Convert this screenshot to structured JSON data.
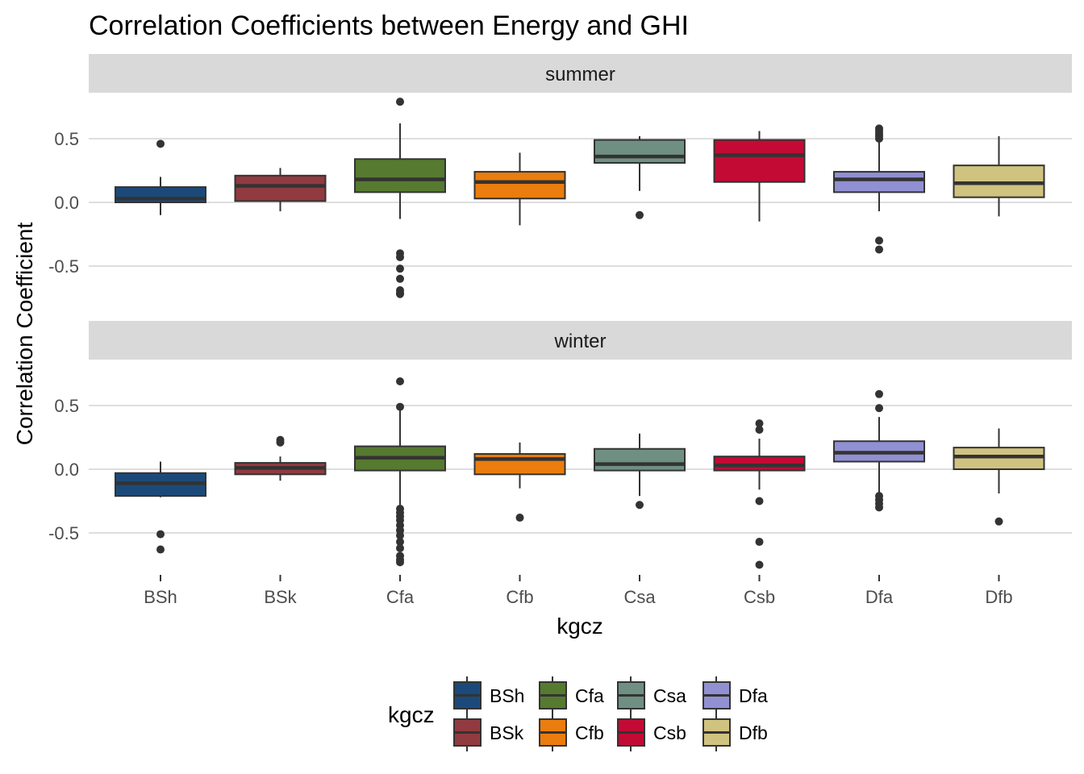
{
  "chart_data": {
    "type": "box",
    "title": "Correlation Coefficients between Energy and GHI",
    "xlabel": "kgcz",
    "ylabel": "Correlation Coefficient",
    "ylim": [
      -0.85,
      0.82
    ],
    "yticks": [
      -0.5,
      0.0,
      0.5
    ],
    "ytick_labels": [
      "-0.5",
      "0.0",
      "0.5"
    ],
    "categories": [
      "BSh",
      "BSk",
      "Cfa",
      "Cfb",
      "Csa",
      "Csb",
      "Dfa",
      "Dfb"
    ],
    "colors": {
      "BSh": "#1b4a7a",
      "BSk": "#913a40",
      "Cfa": "#567a30",
      "Cfb": "#ea7d0d",
      "Csa": "#6f8f83",
      "Csb": "#c30a35",
      "Dfa": "#9190d2",
      "Dfb": "#cfc37f"
    },
    "grid": true,
    "legend": {
      "title": "kgcz",
      "position": "bottom",
      "entries": [
        "BSh",
        "BSk",
        "Cfa",
        "Cfb",
        "Csa",
        "Csb",
        "Dfa",
        "Dfb"
      ]
    },
    "panels": [
      {
        "strip": "summer",
        "boxes": [
          {
            "category": "BSh",
            "whisker_low": -0.1,
            "q1": 0.0,
            "median": 0.03,
            "q3": 0.12,
            "whisker_high": 0.2,
            "outliers": [
              0.46
            ]
          },
          {
            "category": "BSk",
            "whisker_low": -0.07,
            "q1": 0.01,
            "median": 0.13,
            "q3": 0.21,
            "whisker_high": 0.27,
            "outliers": []
          },
          {
            "category": "Cfa",
            "whisker_low": -0.13,
            "q1": 0.08,
            "median": 0.18,
            "q3": 0.34,
            "whisker_high": 0.62,
            "outliers": [
              0.79,
              -0.4,
              -0.43,
              -0.52,
              -0.6,
              -0.69,
              -0.71,
              -0.72
            ]
          },
          {
            "category": "Cfb",
            "whisker_low": -0.18,
            "q1": 0.03,
            "median": 0.16,
            "q3": 0.24,
            "whisker_high": 0.39,
            "outliers": []
          },
          {
            "category": "Csa",
            "whisker_low": 0.09,
            "q1": 0.31,
            "median": 0.36,
            "q3": 0.49,
            "whisker_high": 0.52,
            "outliers": [
              -0.1
            ]
          },
          {
            "category": "Csb",
            "whisker_low": -0.15,
            "q1": 0.16,
            "median": 0.37,
            "q3": 0.49,
            "whisker_high": 0.56,
            "outliers": []
          },
          {
            "category": "Dfa",
            "whisker_low": -0.07,
            "q1": 0.08,
            "median": 0.18,
            "q3": 0.24,
            "whisker_high": 0.49,
            "outliers": [
              0.52,
              0.54,
              0.56,
              0.58,
              0.5,
              -0.3,
              -0.37
            ]
          },
          {
            "category": "Dfb",
            "whisker_low": -0.11,
            "q1": 0.04,
            "median": 0.15,
            "q3": 0.29,
            "whisker_high": 0.52,
            "outliers": []
          }
        ]
      },
      {
        "strip": "winter",
        "boxes": [
          {
            "category": "BSh",
            "whisker_low": -0.22,
            "q1": -0.21,
            "median": -0.11,
            "q3": -0.03,
            "whisker_high": 0.06,
            "outliers": [
              -0.51,
              -0.63
            ]
          },
          {
            "category": "BSk",
            "whisker_low": -0.09,
            "q1": -0.04,
            "median": 0.01,
            "q3": 0.05,
            "whisker_high": 0.1,
            "outliers": [
              0.21,
              0.23
            ]
          },
          {
            "category": "Cfa",
            "whisker_low": -0.28,
            "q1": -0.01,
            "median": 0.09,
            "q3": 0.18,
            "whisker_high": 0.47,
            "outliers": [
              0.69,
              0.49,
              -0.31,
              -0.34,
              -0.37,
              -0.4,
              -0.44,
              -0.48,
              -0.52,
              -0.57,
              -0.62,
              -0.68,
              -0.71,
              -0.73
            ]
          },
          {
            "category": "Cfb",
            "whisker_low": -0.15,
            "q1": -0.04,
            "median": 0.08,
            "q3": 0.12,
            "whisker_high": 0.21,
            "outliers": [
              -0.38
            ]
          },
          {
            "category": "Csa",
            "whisker_low": -0.21,
            "q1": -0.01,
            "median": 0.04,
            "q3": 0.16,
            "whisker_high": 0.28,
            "outliers": [
              -0.28
            ]
          },
          {
            "category": "Csb",
            "whisker_low": -0.16,
            "q1": -0.01,
            "median": 0.03,
            "q3": 0.1,
            "whisker_high": 0.24,
            "outliers": [
              0.36,
              0.31,
              -0.25,
              -0.57,
              -0.75
            ]
          },
          {
            "category": "Dfa",
            "whisker_low": -0.19,
            "q1": 0.06,
            "median": 0.13,
            "q3": 0.22,
            "whisker_high": 0.41,
            "outliers": [
              0.59,
              0.48,
              -0.21,
              -0.24,
              -0.27,
              -0.3
            ]
          },
          {
            "category": "Dfb",
            "whisker_low": -0.19,
            "q1": 0.0,
            "median": 0.1,
            "q3": 0.17,
            "whisker_high": 0.32,
            "outliers": [
              -0.41
            ]
          }
        ]
      }
    ]
  }
}
